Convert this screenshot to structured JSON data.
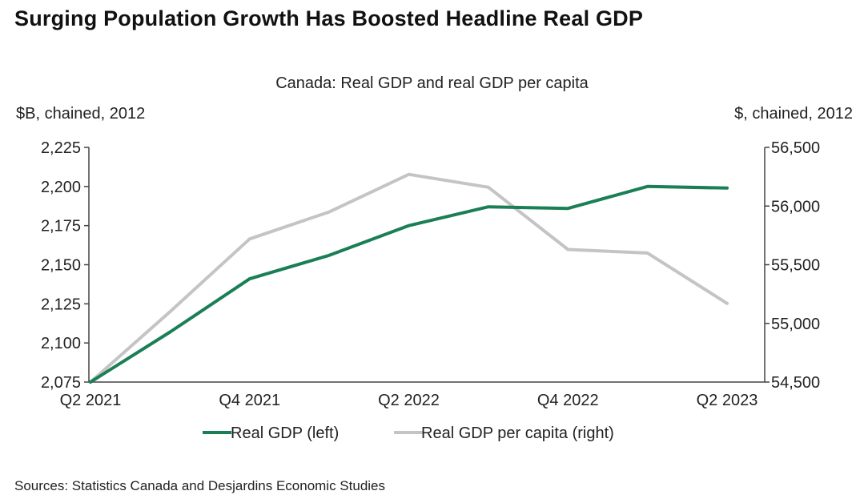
{
  "page": {
    "title": "Surging Population Growth Has Boosted Headline Real GDP",
    "source": "Sources: Statistics Canada and Desjardins Economic Studies"
  },
  "chart_data": {
    "type": "line",
    "title": "Canada: Real GDP and real GDP per capita",
    "ylabel_left": "$B, chained, 2012",
    "ylabel_right": "$, chained, 2012",
    "x": [
      "Q2 2021",
      "Q3 2021",
      "Q4 2021",
      "Q1 2022",
      "Q2 2022",
      "Q3 2022",
      "Q4 2022",
      "Q1 2023",
      "Q2 2023"
    ],
    "x_tick_labels": [
      "Q2 2021",
      "Q4 2021",
      "Q2 2022",
      "Q4 2022",
      "Q2 2023"
    ],
    "ylim_left": [
      2075,
      2225
    ],
    "yticks_left": [
      "2,075",
      "2,100",
      "2,125",
      "2,150",
      "2,175",
      "2,200",
      "2,225"
    ],
    "ylim_right": [
      54500,
      56500
    ],
    "yticks_right": [
      "54,500",
      "55,000",
      "55,500",
      "56,000",
      "56,500"
    ],
    "grid": false,
    "legend_position": "bottom",
    "series": [
      {
        "name": "Real GDP (left)",
        "axis": "left",
        "color": "#1a7f55",
        "values": [
          2075,
          2107,
          2141,
          2156,
          2175,
          2187,
          2186,
          2200,
          2199
        ]
      },
      {
        "name": "Real GDP per capita (right)",
        "axis": "right",
        "color": "#c4c4c4",
        "values": [
          54500,
          55100,
          55720,
          55950,
          56270,
          56160,
          55630,
          55600,
          55170
        ]
      }
    ]
  }
}
